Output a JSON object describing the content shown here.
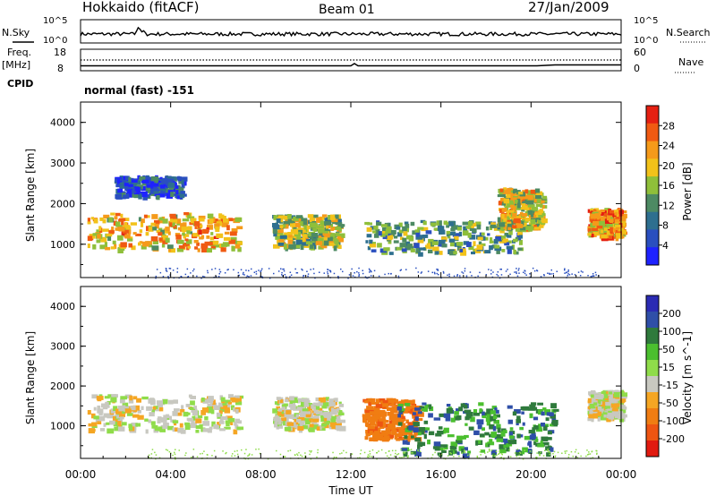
{
  "header": {
    "station": "Hokkaido (fitACF)",
    "beam": "Beam 01",
    "date": "27/Jan/2009"
  },
  "noise_panel": {
    "left_label": "N.Sky",
    "right_label": "N.Search",
    "left_ticks": [
      "10^5",
      "10^0"
    ],
    "right_ticks": [
      "10^5",
      "10^0"
    ]
  },
  "freq_panel": {
    "left_label_1": "Freq.",
    "left_label_2": "[MHz]",
    "left_ticks": [
      "18",
      "8"
    ],
    "right_label": "Nave",
    "right_ticks": [
      "60",
      "0"
    ]
  },
  "cpid": {
    "label": "CPID",
    "value": "normal (fast) -151"
  },
  "time_axis": {
    "label": "Time UT",
    "ticks": [
      "00:00",
      "04:00",
      "08:00",
      "12:00",
      "16:00",
      "20:00",
      "00:00"
    ]
  },
  "colors": {
    "power_scale": [
      "#1e22ff",
      "#2a4fbf",
      "#2e6f8f",
      "#4d8a63",
      "#8fbf3a",
      "#f2c21a",
      "#f59a1a",
      "#f05a12",
      "#e52012"
    ],
    "velocity_scale": [
      "#2b2bb3",
      "#2f4fa8",
      "#2f7a3c",
      "#4bbf2f",
      "#8fdc4a",
      "#c8c8c0",
      "#f5a623",
      "#f07d12",
      "#ee5512",
      "#e11a10"
    ]
  },
  "chart_data": [
    {
      "type": "heatmap",
      "title": "Power",
      "xlabel": "Time UT",
      "ylabel": "Slant Range [km]",
      "xlim": [
        "00:00",
        "24:00"
      ],
      "ylim": [
        180,
        4500
      ],
      "yticks": [
        "1000",
        "2000",
        "3000",
        "4000"
      ],
      "colorbar_label": "Power [dB]",
      "colorbar_ticks": [
        "4",
        "8",
        "12",
        "16",
        "20",
        "24",
        "28"
      ],
      "colorbar_range": [
        0,
        30
      ],
      "regions": [
        {
          "t0": 0.3,
          "t1": 7.0,
          "r0": 900,
          "r1": 1800,
          "value": 20
        },
        {
          "t0": 1.5,
          "t1": 4.5,
          "r0": 2200,
          "r1": 2700,
          "value": 6
        },
        {
          "t0": 8.5,
          "t1": 11.5,
          "r0": 950,
          "r1": 1750,
          "value": 16
        },
        {
          "t0": 12.5,
          "t1": 19.5,
          "r0": 800,
          "r1": 1600,
          "value": 12
        },
        {
          "t0": 18.5,
          "t1": 20.5,
          "r0": 1400,
          "r1": 2400,
          "value": 18
        },
        {
          "t0": 22.5,
          "t1": 24.0,
          "r0": 1200,
          "r1": 1900,
          "value": 22
        }
      ]
    },
    {
      "type": "heatmap",
      "title": "Velocity",
      "xlabel": "Time UT",
      "ylabel": "Slant Range [km]",
      "xlim": [
        "00:00",
        "24:00"
      ],
      "ylim": [
        180,
        4500
      ],
      "yticks": [
        "1000",
        "2000",
        "3000",
        "4000"
      ],
      "colorbar_label": "Velocity [m s^-1]",
      "colorbar_ticks": [
        "200",
        "100",
        "50",
        "15",
        "-15",
        "-50",
        "-100",
        "-200"
      ],
      "colorbar_range": [
        -250,
        250
      ],
      "regions": [
        {
          "t0": 0.3,
          "t1": 7.0,
          "r0": 900,
          "r1": 1800,
          "value": 0
        },
        {
          "t0": 8.5,
          "t1": 11.5,
          "r0": 950,
          "r1": 1750,
          "value": 0
        },
        {
          "t0": 12.5,
          "t1": 15.0,
          "r0": 700,
          "r1": 1700,
          "value": -80
        },
        {
          "t0": 14.0,
          "t1": 21.0,
          "r0": 300,
          "r1": 1600,
          "value": 60
        },
        {
          "t0": 22.5,
          "t1": 24.0,
          "r0": 1200,
          "r1": 1900,
          "value": 0
        }
      ]
    }
  ]
}
